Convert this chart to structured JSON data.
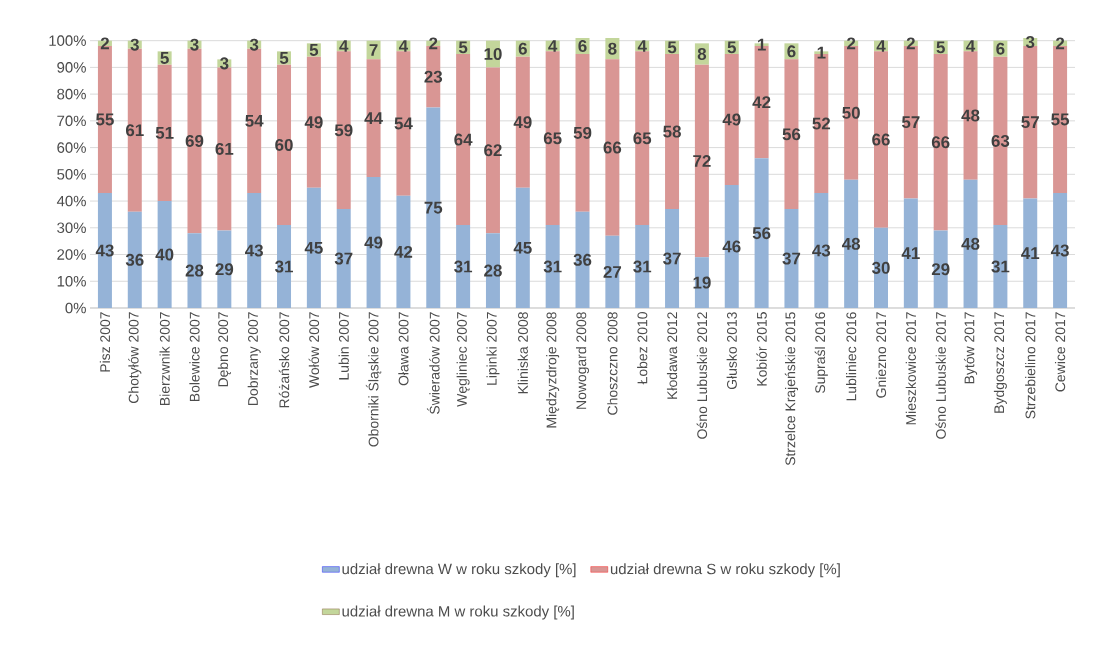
{
  "chart_data": {
    "type": "bar",
    "stacked": true,
    "categories": [
      "Pisz 2007",
      "Chotyłów 2007",
      "Bierzwnik 2007",
      "Bolewice 2007",
      "Dębno 2007",
      "Dobrzany 2007",
      "Różańsko 2007",
      "Wołów 2007",
      "Lubin 2007",
      "Oborniki Śląskie 2007",
      "Oława 2007",
      "Świeradów 2007",
      "Węgliniec 2007",
      "Lipinki 2007",
      "Kliniska 2008",
      "Międzyzdroje 2008",
      "Nowogard 2008",
      "Choszczno 2008",
      "Łobez 2010",
      "Kłodawa 2012",
      "Ośno Lubuskie 2012",
      "Głusko 2013",
      "Kobiór 2015",
      "Strzelce Krajeńskie 2015",
      "Supraśl 2016",
      "Lubliniec 2016",
      "Gniezno 2017",
      "Mieszkowice 2017",
      "Ośno Lubuskie 2017",
      "Bytów 2017",
      "Bydgoszcz 2017",
      "Strzebielino 2017",
      "Cewice 2017"
    ],
    "series": [
      {
        "name": "udział drewna W w roku szkody [%]",
        "color": "#95b3d7",
        "values": [
          43,
          36,
          40,
          28,
          29,
          43,
          31,
          45,
          37,
          49,
          42,
          75,
          31,
          28,
          45,
          31,
          36,
          27,
          31,
          37,
          19,
          46,
          56,
          37,
          43,
          48,
          30,
          41,
          29,
          48,
          31,
          41,
          43
        ]
      },
      {
        "name": "udział drewna S w roku szkody [%]",
        "color": "#d99694",
        "values": [
          55,
          61,
          51,
          69,
          61,
          54,
          60,
          49,
          59,
          44,
          54,
          23,
          64,
          62,
          49,
          65,
          59,
          66,
          65,
          58,
          72,
          49,
          42,
          56,
          52,
          50,
          66,
          57,
          66,
          48,
          63,
          57,
          55
        ]
      },
      {
        "name": "udział drewna M w roku szkody [%]",
        "color": "#c3d69b",
        "values": [
          2,
          3,
          5,
          3,
          3,
          3,
          5,
          5,
          4,
          7,
          4,
          2,
          5,
          10,
          6,
          4,
          6,
          8,
          4,
          5,
          8,
          5,
          1,
          6,
          1,
          2,
          4,
          2,
          5,
          4,
          6,
          3,
          2
        ]
      }
    ],
    "ylim": [
      0,
      101
    ],
    "yticks": [
      {
        "value": 0,
        "label": "0%"
      },
      {
        "value": 10,
        "label": "10%"
      },
      {
        "value": 20,
        "label": "20%"
      },
      {
        "value": 30,
        "label": "30%"
      },
      {
        "value": 40,
        "label": "40%"
      },
      {
        "value": 50,
        "label": "50%"
      },
      {
        "value": 60,
        "label": "60%"
      },
      {
        "value": 70,
        "label": "70%"
      },
      {
        "value": 80,
        "label": "80%"
      },
      {
        "value": 90,
        "label": "90%"
      },
      {
        "value": 100,
        "label": "100%"
      }
    ],
    "grid": "y",
    "legend": "bottom",
    "data_labels": true
  }
}
